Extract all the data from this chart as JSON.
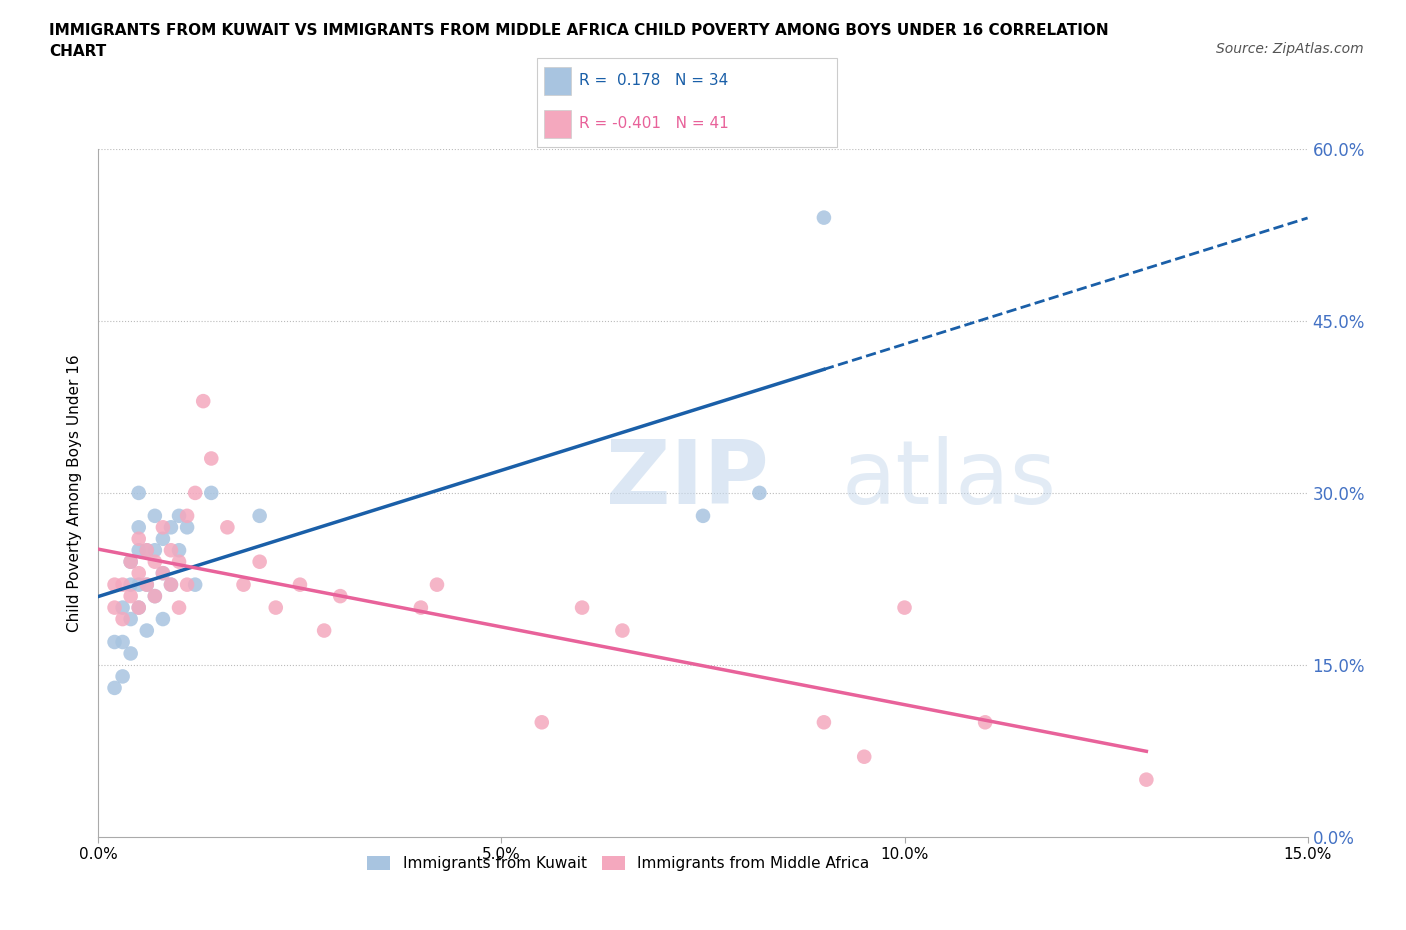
{
  "title": "IMMIGRANTS FROM KUWAIT VS IMMIGRANTS FROM MIDDLE AFRICA CHILD POVERTY AMONG BOYS UNDER 16 CORRELATION\nCHART",
  "source": "Source: ZipAtlas.com",
  "ylabel": "Child Poverty Among Boys Under 16",
  "legend_label1": "Immigrants from Kuwait",
  "legend_label2": "Immigrants from Middle Africa",
  "r1": 0.178,
  "n1": 34,
  "r2": -0.401,
  "n2": 41,
  "xlim": [
    0.0,
    0.15
  ],
  "ylim": [
    0.0,
    0.6
  ],
  "xticks": [
    0.0,
    0.05,
    0.1,
    0.15
  ],
  "yticks": [
    0.0,
    0.15,
    0.3,
    0.45,
    0.6
  ],
  "xtick_labels": [
    "0.0%",
    "5.0%",
    "10.0%",
    "15.0%"
  ],
  "right_ytick_labels": [
    "0.0%",
    "15.0%",
    "30.0%",
    "45.0%",
    "60.0%"
  ],
  "color_kuwait": "#a8c4e0",
  "color_africa": "#f4a8be",
  "trend_color_kuwait": "#1a5fa8",
  "trend_color_africa": "#e8629a",
  "watermark": "ZIPatlas",
  "kuwait_x": [
    0.002,
    0.002,
    0.003,
    0.003,
    0.003,
    0.004,
    0.004,
    0.004,
    0.004,
    0.005,
    0.005,
    0.005,
    0.005,
    0.005,
    0.006,
    0.006,
    0.006,
    0.007,
    0.007,
    0.007,
    0.008,
    0.008,
    0.008,
    0.009,
    0.009,
    0.01,
    0.01,
    0.011,
    0.012,
    0.014,
    0.02,
    0.075,
    0.082,
    0.09
  ],
  "kuwait_y": [
    0.13,
    0.17,
    0.14,
    0.17,
    0.2,
    0.16,
    0.19,
    0.22,
    0.24,
    0.2,
    0.22,
    0.25,
    0.27,
    0.3,
    0.18,
    0.22,
    0.25,
    0.21,
    0.25,
    0.28,
    0.19,
    0.23,
    0.26,
    0.22,
    0.27,
    0.25,
    0.28,
    0.27,
    0.22,
    0.3,
    0.28,
    0.28,
    0.3,
    0.54
  ],
  "africa_x": [
    0.002,
    0.002,
    0.003,
    0.003,
    0.004,
    0.004,
    0.005,
    0.005,
    0.005,
    0.006,
    0.006,
    0.007,
    0.007,
    0.008,
    0.008,
    0.009,
    0.009,
    0.01,
    0.01,
    0.011,
    0.011,
    0.012,
    0.013,
    0.014,
    0.016,
    0.018,
    0.02,
    0.022,
    0.025,
    0.028,
    0.03,
    0.04,
    0.042,
    0.055,
    0.06,
    0.065,
    0.09,
    0.095,
    0.1,
    0.11,
    0.13
  ],
  "africa_y": [
    0.2,
    0.22,
    0.19,
    0.22,
    0.21,
    0.24,
    0.2,
    0.23,
    0.26,
    0.22,
    0.25,
    0.21,
    0.24,
    0.23,
    0.27,
    0.22,
    0.25,
    0.2,
    0.24,
    0.22,
    0.28,
    0.3,
    0.38,
    0.33,
    0.27,
    0.22,
    0.24,
    0.2,
    0.22,
    0.18,
    0.21,
    0.2,
    0.22,
    0.1,
    0.2,
    0.18,
    0.1,
    0.07,
    0.2,
    0.1,
    0.05
  ]
}
